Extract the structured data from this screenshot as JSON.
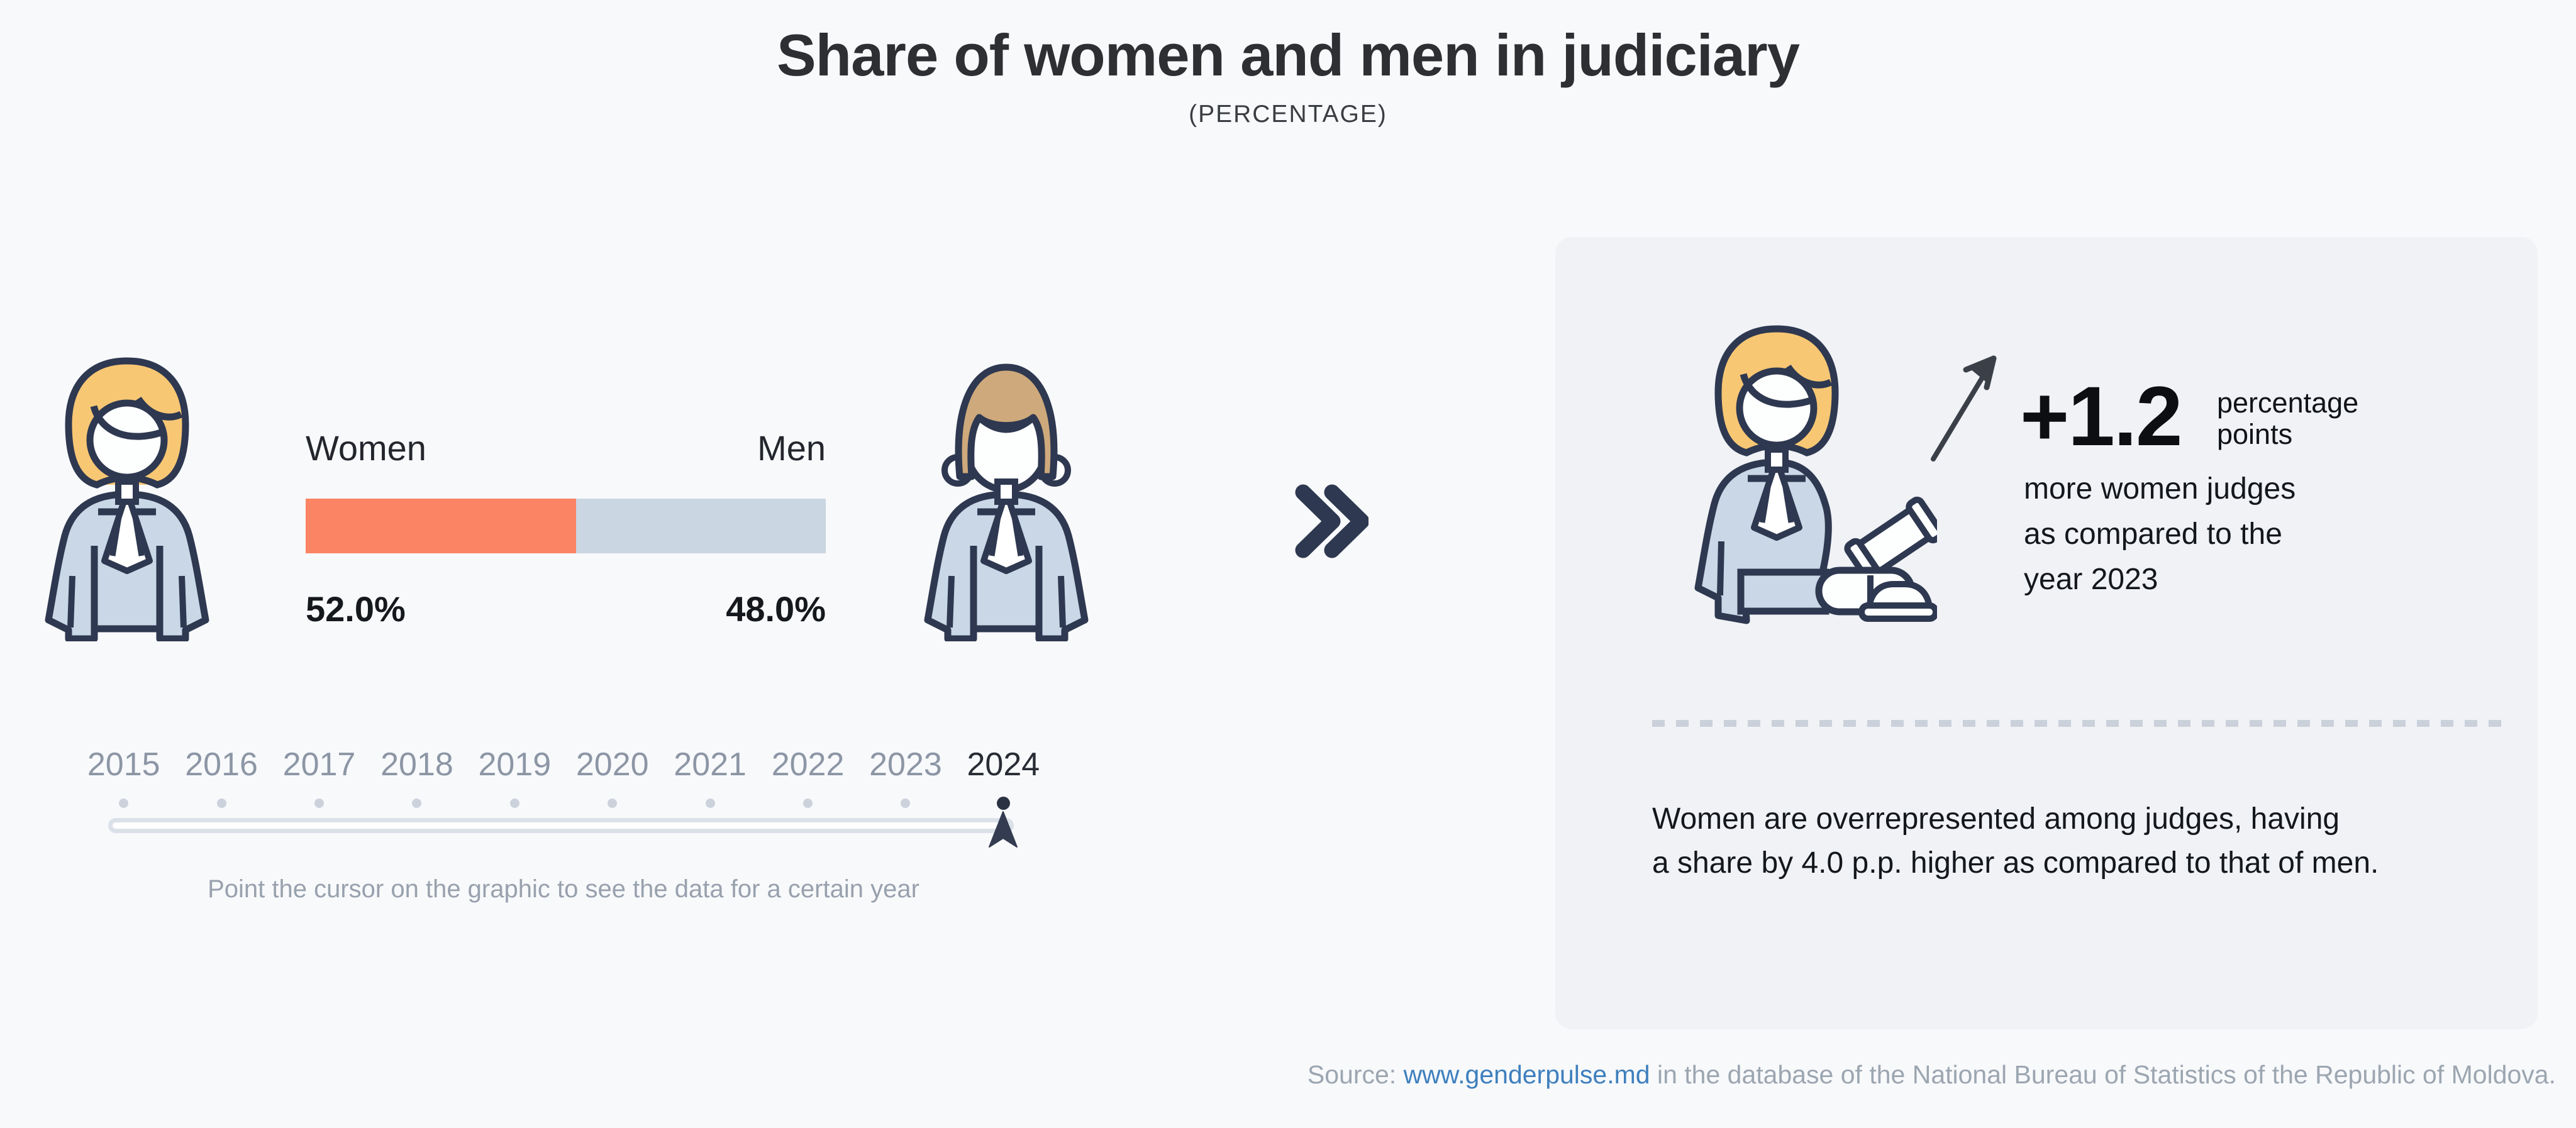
{
  "title": "Share of women and men in judiciary",
  "subtitle": "(PERCENTAGE)",
  "chart": {
    "women_label": "Women",
    "men_label": "Men",
    "women_value": "52.0%",
    "men_value": "48.0%",
    "women_pct": 52.0,
    "men_pct": 48.0
  },
  "chart_data": {
    "type": "bar",
    "categories": [
      "Women",
      "Men"
    ],
    "values": [
      52.0,
      48.0
    ],
    "title": "Share of women and men in judiciary",
    "subtitle": "(PERCENTAGE)",
    "unit": "percent",
    "selected_year": "2024",
    "years_available": [
      "2015",
      "2016",
      "2017",
      "2018",
      "2019",
      "2020",
      "2021",
      "2022",
      "2023",
      "2024"
    ],
    "change_vs_previous_year_pp": 1.2,
    "gap_women_minus_men_pp": 4.0,
    "xlim": [
      0,
      100
    ],
    "legend_position": "above-bar",
    "series_colors": [
      "#fb8464",
      "#cad6e2"
    ]
  },
  "timeline": {
    "years": [
      "2015",
      "2016",
      "2017",
      "2018",
      "2019",
      "2020",
      "2021",
      "2022",
      "2023",
      "2024"
    ],
    "selected_year": "2024",
    "hint": "Point the cursor on the graphic to see the data for a certain year"
  },
  "panel": {
    "delta_value": "+1.2",
    "delta_unit_line1": "percentage",
    "delta_unit_line2": "points",
    "delta_desc_line1": "more women judges",
    "delta_desc_line2": "as compared to the",
    "delta_desc_line3": "year 2023",
    "summary_line1": "Women are overrepresented among judges, having",
    "summary_line2": "a share by 4.0 p.p. higher as compared to that of men."
  },
  "source": {
    "prefix": "Source: ",
    "link": "www.genderpulse.md",
    "suffix": " in the database of the National Bureau of Statistics of the Republic of Moldova."
  },
  "icons": {
    "left": "woman-judge-icon",
    "middle": "man-judge-icon",
    "separator": "double-chevron-right-icon",
    "panel": "woman-judge-gavel-icon",
    "trend": "arrow-up-right-icon",
    "slider": "timeline-cursor-icon"
  },
  "colors": {
    "background": "#f8f9fb",
    "panel_background": "#f0f2f6",
    "women_bar": "#fb8464",
    "men_bar": "#cad6e2",
    "outline_navy": "#2e3850",
    "hair_woman": "#f8c774",
    "hair_man": "#cea97c",
    "robe": "#c9d7e7",
    "year_inactive": "#8c96a5",
    "year_active": "#282c34",
    "link_blue": "#3e7fbd",
    "muted_text": "#98a1ad"
  }
}
